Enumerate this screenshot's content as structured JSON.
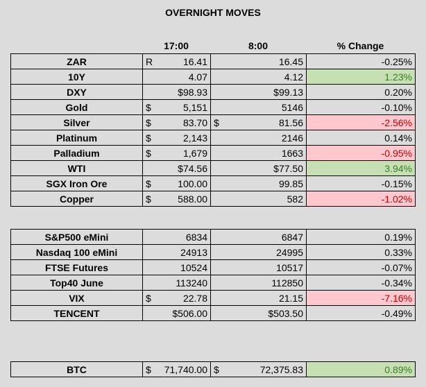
{
  "title": "OVERNIGHT MOVES",
  "headers": {
    "c1": "17:00",
    "c2": "8:00",
    "c3": "% Change"
  },
  "commodities": [
    {
      "name": "ZAR",
      "p1": "R",
      "v1": "16.41",
      "p2": "",
      "v2": "16.45",
      "chg": "-0.25%",
      "tone": "none"
    },
    {
      "name": "10Y",
      "p1": "",
      "v1": "4.07",
      "p2": "",
      "v2": "4.12",
      "chg": "1.23%",
      "tone": "pos"
    },
    {
      "name": "DXY",
      "p1": "",
      "v1": "$98.93",
      "p2": "",
      "v2": "$99.13",
      "chg": "0.20%",
      "tone": "none"
    },
    {
      "name": "Gold",
      "p1": "$",
      "v1": "5,151",
      "p2": "",
      "v2": "5146",
      "chg": "-0.10%",
      "tone": "none"
    },
    {
      "name": "Silver",
      "p1": "$",
      "v1": "83.70",
      "p2": "$",
      "v2": "81.56",
      "chg": "-2.56%",
      "tone": "neg"
    },
    {
      "name": "Platinum",
      "p1": "$",
      "v1": "2,143",
      "p2": "",
      "v2": "2146",
      "chg": "0.14%",
      "tone": "none"
    },
    {
      "name": "Palladium",
      "p1": "$",
      "v1": "1,679",
      "p2": "",
      "v2": "1663",
      "chg": "-0.95%",
      "tone": "neg"
    },
    {
      "name": "WTI",
      "p1": "",
      "v1": "$74.56",
      "p2": "",
      "v2": "$77.50",
      "chg": "3.94%",
      "tone": "pos"
    },
    {
      "name": "SGX Iron Ore",
      "p1": "$",
      "v1": "100.00",
      "p2": "",
      "v2": "99.85",
      "chg": "-0.15%",
      "tone": "none"
    },
    {
      "name": "Copper",
      "p1": "$",
      "v1": "588.00",
      "p2": "",
      "v2": "582",
      "chg": "-1.02%",
      "tone": "neg"
    }
  ],
  "indices": [
    {
      "name": "S&P500 eMini",
      "p1": "",
      "v1": "6834",
      "p2": "",
      "v2": "6847",
      "chg": "0.19%",
      "tone": "none"
    },
    {
      "name": "Nasdaq 100 eMini",
      "p1": "",
      "v1": "24913",
      "p2": "",
      "v2": "24995",
      "chg": "0.33%",
      "tone": "none"
    },
    {
      "name": "FTSE Futures",
      "p1": "",
      "v1": "10524",
      "p2": "",
      "v2": "10517",
      "chg": "-0.07%",
      "tone": "none"
    },
    {
      "name": "Top40 June",
      "p1": "",
      "v1": "113240",
      "p2": "",
      "v2": "112850",
      "chg": "-0.34%",
      "tone": "none"
    },
    {
      "name": "VIX",
      "p1": "$",
      "v1": "22.78",
      "p2": "",
      "v2": "21.15",
      "chg": "-7.16%",
      "tone": "neg"
    },
    {
      "name": "TENCENT",
      "p1": "",
      "v1": "$506.00",
      "p2": "",
      "v2": "$503.50",
      "chg": "-0.49%",
      "tone": "none"
    }
  ],
  "crypto": [
    {
      "name": "BTC",
      "p1": "$",
      "v1": "71,740.00",
      "p2": "$",
      "v2": "72,375.83",
      "chg": "0.89%",
      "tone": "pos"
    }
  ]
}
